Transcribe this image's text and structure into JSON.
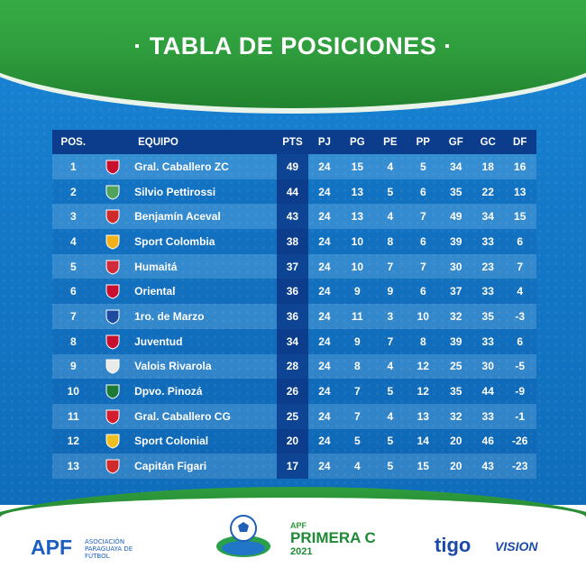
{
  "title": "· TABLA DE POSICIONES ·",
  "columns": [
    "POS.",
    "EQUIPO",
    "PTS",
    "PJ",
    "PG",
    "PE",
    "PP",
    "GF",
    "GC",
    "DF"
  ],
  "rows": [
    {
      "pos": "1",
      "team": "Gral. Caballero ZC",
      "pts": "49",
      "pj": "24",
      "pg": "15",
      "pe": "4",
      "pp": "5",
      "gf": "34",
      "gc": "18",
      "df": "16",
      "crest_color": "#c8102e",
      "crest_icon": "shield-crest-icon"
    },
    {
      "pos": "2",
      "team": "Silvio Pettirossi",
      "pts": "44",
      "pj": "24",
      "pg": "13",
      "pe": "5",
      "pp": "6",
      "gf": "35",
      "gc": "22",
      "df": "13",
      "crest_color": "#4fa35a",
      "crest_icon": "winged-crest-icon"
    },
    {
      "pos": "3",
      "team": "Benjamín Aceval",
      "pts": "43",
      "pj": "24",
      "pg": "13",
      "pe": "4",
      "pp": "7",
      "gf": "49",
      "gc": "34",
      "df": "15",
      "crest_color": "#d12a2a",
      "crest_icon": "striped-shield-crest-icon"
    },
    {
      "pos": "4",
      "team": "Sport Colombia",
      "pts": "38",
      "pj": "24",
      "pg": "10",
      "pe": "8",
      "pp": "6",
      "gf": "39",
      "gc": "33",
      "df": "6",
      "crest_color": "#f2b118",
      "crest_icon": "round-crest-icon"
    },
    {
      "pos": "5",
      "team": "Humaitá",
      "pts": "37",
      "pj": "24",
      "pg": "10",
      "pe": "7",
      "pp": "7",
      "gf": "30",
      "gc": "23",
      "df": "7",
      "crest_color": "#d22a3a",
      "crest_icon": "diagonal-shield-crest-icon"
    },
    {
      "pos": "6",
      "team": "Oriental",
      "pts": "36",
      "pj": "24",
      "pg": "9",
      "pe": "9",
      "pp": "6",
      "gf": "37",
      "gc": "33",
      "df": "4",
      "crest_color": "#c8102e",
      "crest_icon": "striped-shield-crest-icon"
    },
    {
      "pos": "7",
      "team": "1ro. de Marzo",
      "pts": "36",
      "pj": "24",
      "pg": "11",
      "pe": "3",
      "pp": "10",
      "gf": "32",
      "gc": "35",
      "df": "-3",
      "crest_color": "#1e4aa0",
      "crest_icon": "pennant-crest-icon"
    },
    {
      "pos": "8",
      "team": "Juventud",
      "pts": "34",
      "pj": "24",
      "pg": "9",
      "pe": "7",
      "pp": "8",
      "gf": "39",
      "gc": "33",
      "df": "6",
      "crest_color": "#c8102e",
      "crest_icon": "shield-crest-icon"
    },
    {
      "pos": "9",
      "team": "Valois Rivarola",
      "pts": "28",
      "pj": "24",
      "pg": "8",
      "pe": "4",
      "pp": "12",
      "gf": "25",
      "gc": "30",
      "df": "-5",
      "crest_color": "#eaeaea",
      "crest_icon": "round-crest-icon"
    },
    {
      "pos": "10",
      "team": "Dpvo. Pinozá",
      "pts": "26",
      "pj": "24",
      "pg": "7",
      "pe": "5",
      "pp": "12",
      "gf": "35",
      "gc": "44",
      "df": "-9",
      "crest_color": "#1b7a35",
      "crest_icon": "shield-crest-icon"
    },
    {
      "pos": "11",
      "team": "Gral. Caballero CG",
      "pts": "25",
      "pj": "24",
      "pg": "7",
      "pe": "4",
      "pp": "13",
      "gf": "32",
      "gc": "33",
      "df": "-1",
      "crest_color": "#d41d2d",
      "crest_icon": "flower-crest-icon"
    },
    {
      "pos": "12",
      "team": "Sport Colonial",
      "pts": "20",
      "pj": "24",
      "pg": "5",
      "pe": "5",
      "pp": "14",
      "gf": "20",
      "gc": "46",
      "df": "-26",
      "crest_color": "#f0c020",
      "crest_icon": "round-crest-icon"
    },
    {
      "pos": "13",
      "team": "Capitán Figari",
      "pts": "17",
      "pj": "24",
      "pg": "4",
      "pe": "5",
      "pp": "15",
      "gf": "20",
      "gc": "43",
      "df": "-23",
      "crest_color": "#d12a2a",
      "crest_icon": "striped-shield-crest-icon"
    }
  ],
  "footer": {
    "apf_logo": "APF",
    "apf_name": "ASOCIACIÓN PARAGUAYA DE FÚTBOL",
    "league_small": "APF",
    "league_name": "PRIMERA C",
    "league_year": "2021",
    "sponsor_1": "tigo",
    "sponsor_2": "VISION"
  },
  "colors": {
    "header_green": "#2f9d3d",
    "background_blue": "#1479c8",
    "table_header": "#0b3d8c",
    "apf_blue": "#1d5ec2"
  }
}
